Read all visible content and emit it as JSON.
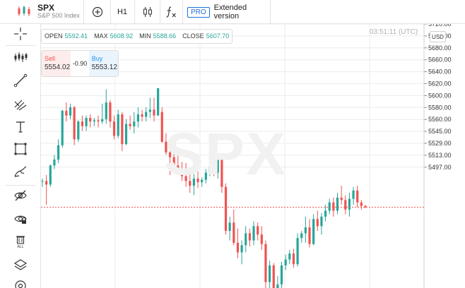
{
  "symbol": {
    "ticker": "SPX",
    "description": "S&P 500 Index"
  },
  "toolbar": {
    "timeframe": "H1",
    "pro_badge": "PRO",
    "extended_label": "Extended version"
  },
  "sidebar": {
    "tools": [
      "crosshair-icon",
      "indicators-icon",
      "trend-line-icon",
      "fib-tool-icon",
      "text-tool-icon",
      "rectangle-tool-icon",
      "brush-tool-icon",
      "hide-drawings-icon",
      "lock-drawings-icon",
      "delete-all-icon",
      "layers-icon",
      "zoom-icon"
    ]
  },
  "ohlc": {
    "open_label": "OPEN",
    "open": "5592.41",
    "max_label": "MAX",
    "max": "5608.92",
    "min_label": "MIN",
    "min": "5588.66",
    "close_label": "CLOSE",
    "close": "5607.70"
  },
  "trade": {
    "sell_label": "Sell",
    "sell_price": "5554.02",
    "spread": "-0.90",
    "buy_label": "Buy",
    "buy_price": "5553.12"
  },
  "timestamp": "03:51:11 (UTC)",
  "currency": "USD",
  "watermark": "SPX",
  "chart_data": {
    "type": "candlestick",
    "price_line": 5568,
    "ylim": [
      5500,
      5722
    ],
    "y_ticks": [
      "5720.00",
      "5700.00",
      "5680.00",
      "5660.00",
      "5640.00",
      "5620.00",
      "5600.00",
      "5580.00",
      "5560.00",
      "5545.00",
      "5529.00",
      "5513.00",
      "5497.00"
    ],
    "up_color": "#26a69a",
    "down_color": "#ef5350",
    "candles": [
      [
        5590,
        5592,
        5585,
        5590
      ],
      [
        5590,
        5595,
        5570,
        5587
      ],
      [
        5587,
        5604,
        5585,
        5603
      ],
      [
        5603,
        5612,
        5600,
        5608
      ],
      [
        5608,
        5625,
        5605,
        5620
      ],
      [
        5620,
        5650,
        5618,
        5649
      ],
      [
        5649,
        5656,
        5640,
        5645
      ],
      [
        5645,
        5655,
        5642,
        5652
      ],
      [
        5652,
        5653,
        5620,
        5625
      ],
      [
        5625,
        5641,
        5623,
        5640
      ],
      [
        5640,
        5645,
        5632,
        5636
      ],
      [
        5636,
        5645,
        5632,
        5643
      ],
      [
        5643,
        5646,
        5635,
        5640
      ],
      [
        5640,
        5643,
        5636,
        5641
      ],
      [
        5641,
        5645,
        5635,
        5640
      ],
      [
        5640,
        5655,
        5638,
        5642
      ],
      [
        5642,
        5667,
        5638,
        5656
      ],
      [
        5656,
        5658,
        5635,
        5640
      ],
      [
        5640,
        5645,
        5625,
        5628
      ],
      [
        5628,
        5650,
        5626,
        5646
      ],
      [
        5646,
        5648,
        5615,
        5621
      ],
      [
        5621,
        5642,
        5620,
        5638
      ],
      [
        5638,
        5645,
        5633,
        5636
      ],
      [
        5636,
        5648,
        5630,
        5640
      ],
      [
        5640,
        5652,
        5635,
        5646
      ],
      [
        5646,
        5650,
        5640,
        5644
      ],
      [
        5644,
        5652,
        5640,
        5648
      ],
      [
        5648,
        5660,
        5643,
        5650
      ],
      [
        5650,
        5660,
        5640,
        5645
      ],
      [
        5645,
        5668,
        5645,
        5668
      ],
      [
        5648,
        5652,
        5622,
        5623
      ],
      [
        5623,
        5630,
        5612,
        5614
      ],
      [
        5614,
        5620,
        5595,
        5610
      ],
      [
        5610,
        5620,
        5600,
        5603
      ],
      [
        5603,
        5612,
        5596,
        5599
      ],
      [
        5599,
        5606,
        5590,
        5594
      ],
      [
        5594,
        5605,
        5585,
        5590
      ],
      [
        5590,
        5600,
        5580,
        5586
      ],
      [
        5586,
        5596,
        5578,
        5592
      ],
      [
        5592,
        5598,
        5584,
        5589
      ],
      [
        5589,
        5593,
        5585,
        5591
      ],
      [
        5591,
        5600,
        5588,
        5597
      ],
      [
        5597,
        5605,
        5594,
        5602
      ],
      [
        5602,
        5604,
        5594,
        5597
      ],
      [
        5597,
        5612,
        5592,
        5608
      ],
      [
        5608,
        5612,
        5580,
        5585
      ],
      [
        5585,
        5588,
        5545,
        5548
      ],
      [
        5548,
        5560,
        5540,
        5555
      ],
      [
        5555,
        5566,
        5536,
        5538
      ],
      [
        5538,
        5550,
        5525,
        5530
      ],
      [
        5530,
        5540,
        5520,
        5536
      ],
      [
        5536,
        5552,
        5530,
        5546
      ],
      [
        5546,
        5550,
        5535,
        5540
      ],
      [
        5540,
        5556,
        5536,
        5552
      ],
      [
        5552,
        5555,
        5540,
        5545
      ],
      [
        5545,
        5552,
        5532,
        5537
      ],
      [
        5537,
        5540,
        5498,
        5505
      ],
      [
        5505,
        5523,
        5500,
        5519
      ],
      [
        5519,
        5521,
        5493,
        5499
      ],
      [
        5499,
        5510,
        5495,
        5503
      ],
      [
        5503,
        5522,
        5500,
        5519
      ],
      [
        5519,
        5528,
        5515,
        5524
      ],
      [
        5524,
        5532,
        5520,
        5529
      ],
      [
        5529,
        5533,
        5517,
        5520
      ],
      [
        5520,
        5546,
        5518,
        5542
      ],
      [
        5542,
        5548,
        5538,
        5546
      ],
      [
        5546,
        5560,
        5538,
        5551
      ],
      [
        5551,
        5558,
        5534,
        5537
      ],
      [
        5537,
        5562,
        5536,
        5558
      ],
      [
        5558,
        5565,
        5548,
        5552
      ],
      [
        5552,
        5563,
        5545,
        5560
      ],
      [
        5560,
        5570,
        5556,
        5565
      ],
      [
        5565,
        5575,
        5562,
        5572
      ],
      [
        5572,
        5576,
        5560,
        5565
      ],
      [
        5565,
        5580,
        5562,
        5576
      ],
      [
        5576,
        5586,
        5570,
        5574
      ],
      [
        5574,
        5578,
        5562,
        5566
      ],
      [
        5566,
        5580,
        5560,
        5575
      ],
      [
        5575,
        5585,
        5570,
        5582
      ],
      [
        5582,
        5586,
        5568,
        5572
      ],
      [
        5572,
        5574,
        5566,
        5569
      ],
      [
        5569,
        5570,
        5567,
        5568
      ]
    ]
  }
}
